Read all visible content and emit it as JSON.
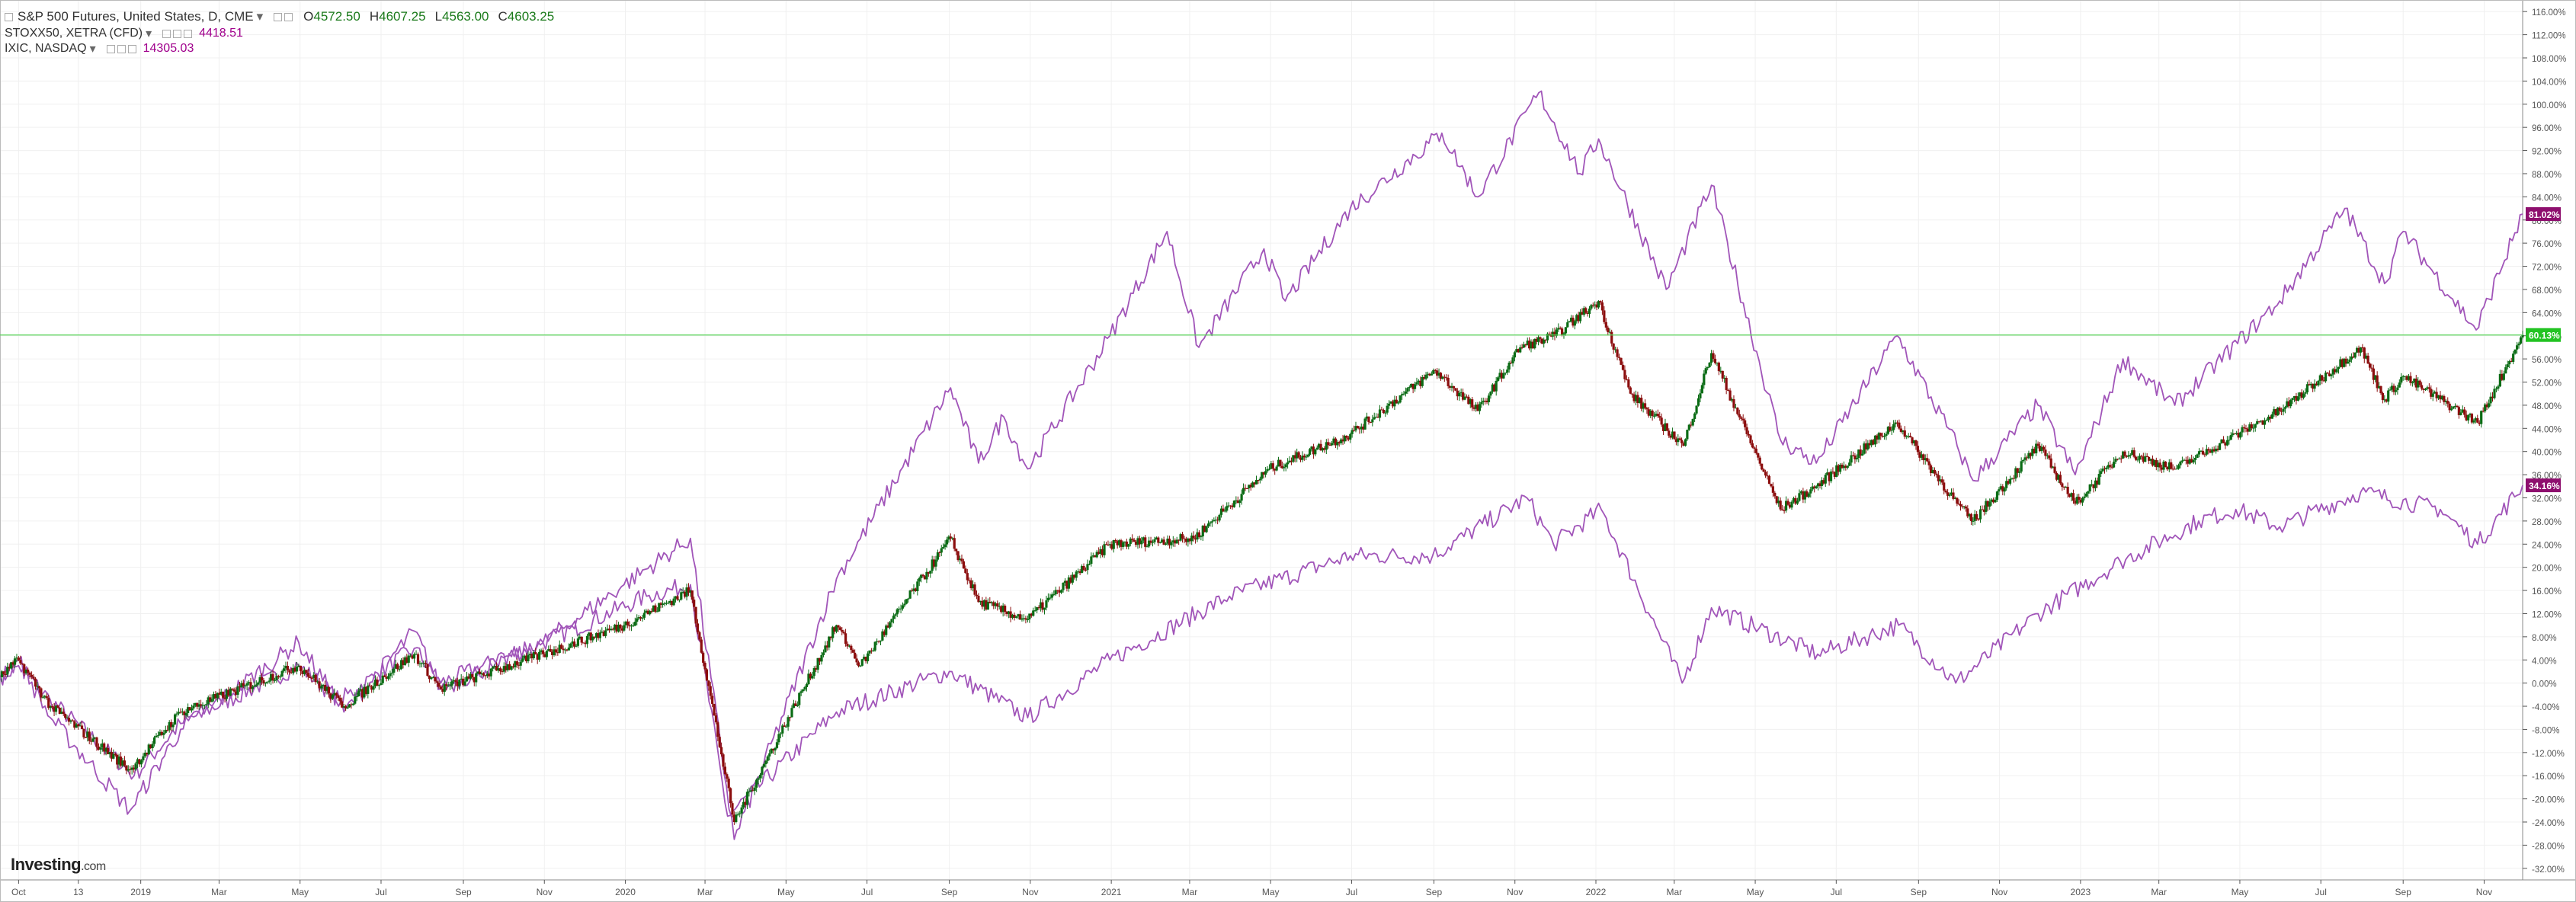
{
  "legend": {
    "main": {
      "title": "S&P 500 Futures, United States, D, CME",
      "open_label": "O",
      "open": "4572.50",
      "high_label": "H",
      "high": "4607.25",
      "low_label": "L",
      "low": "4563.00",
      "close_label": "C",
      "close": "4603.25"
    },
    "secondary": [
      {
        "label": "STOXX50, XETRA (CFD)",
        "value": "4418.51"
      },
      {
        "label": "IXIC, NASDAQ",
        "value": "14305.03"
      }
    ]
  },
  "logo": {
    "text": "Investing",
    "suffix": ".com"
  },
  "colors": {
    "candle_up": "#0a6b14",
    "candle_down": "#8b0d0d",
    "compare_line": "#a155b9",
    "last_price_line": "#5ad45a",
    "badge_green": "#22c322",
    "badge_purple": "#8e0f6e",
    "grid": "#f0f0f0"
  },
  "chart_data": {
    "type": "line",
    "ylabel": "",
    "xlabel": "",
    "y_unit": "%",
    "ylim": [
      -34,
      118
    ],
    "y_ticks": [
      116,
      112,
      108,
      104,
      100,
      96,
      92,
      88,
      84,
      80,
      76,
      72,
      68,
      64,
      60,
      56,
      52,
      48,
      44,
      40,
      36,
      32,
      28,
      24,
      20,
      16,
      12,
      8,
      4,
      0,
      -4,
      -8,
      -12,
      -16,
      -20,
      -24,
      -28,
      -32
    ],
    "y_tick_labels": [
      "116.00%",
      "112.00%",
      "108.00%",
      "104.00%",
      "100.00%",
      "96.00%",
      "92.00%",
      "88.00%",
      "84.00%",
      "80.00%",
      "76.00%",
      "72.00%",
      "68.00%",
      "64.00%",
      "60.00%",
      "56.00%",
      "52.00%",
      "48.00%",
      "44.00%",
      "40.00%",
      "36.00%",
      "32.00%",
      "28.00%",
      "24.00%",
      "20.00%",
      "16.00%",
      "12.00%",
      "8.00%",
      "4.00%",
      "0.00%",
      "-4.00%",
      "-8.00%",
      "-12.00%",
      "-16.00%",
      "-20.00%",
      "-24.00%",
      "-28.00%",
      "-32.00%"
    ],
    "x_range": [
      "2018-09-17",
      "2023-11-30"
    ],
    "x_ticks": [
      {
        "date": "2018-10-01",
        "label": "Oct"
      },
      {
        "date": "2018-11-15",
        "label": "13"
      },
      {
        "date": "2019-01-01",
        "label": "2019"
      },
      {
        "date": "2019-03-01",
        "label": "Mar"
      },
      {
        "date": "2019-05-01",
        "label": "May"
      },
      {
        "date": "2019-07-01",
        "label": "Jul"
      },
      {
        "date": "2019-09-01",
        "label": "Sep"
      },
      {
        "date": "2019-11-01",
        "label": "Nov"
      },
      {
        "date": "2020-01-01",
        "label": "2020"
      },
      {
        "date": "2020-03-01",
        "label": "Mar"
      },
      {
        "date": "2020-05-01",
        "label": "May"
      },
      {
        "date": "2020-07-01",
        "label": "Jul"
      },
      {
        "date": "2020-09-01",
        "label": "Sep"
      },
      {
        "date": "2020-11-01",
        "label": "Nov"
      },
      {
        "date": "2021-01-01",
        "label": "2021"
      },
      {
        "date": "2021-03-01",
        "label": "Mar"
      },
      {
        "date": "2021-05-01",
        "label": "May"
      },
      {
        "date": "2021-07-01",
        "label": "Jul"
      },
      {
        "date": "2021-09-01",
        "label": "Sep"
      },
      {
        "date": "2021-11-01",
        "label": "Nov"
      },
      {
        "date": "2022-01-01",
        "label": "2022"
      },
      {
        "date": "2022-03-01",
        "label": "Mar"
      },
      {
        "date": "2022-05-01",
        "label": "May"
      },
      {
        "date": "2022-07-01",
        "label": "Jul"
      },
      {
        "date": "2022-09-01",
        "label": "Sep"
      },
      {
        "date": "2022-11-01",
        "label": "Nov"
      },
      {
        "date": "2023-01-01",
        "label": "2023"
      },
      {
        "date": "2023-03-01",
        "label": "Mar"
      },
      {
        "date": "2023-05-01",
        "label": "May"
      },
      {
        "date": "2023-07-01",
        "label": "Jul"
      },
      {
        "date": "2023-09-01",
        "label": "Sep"
      },
      {
        "date": "2023-11-01",
        "label": "Nov"
      }
    ],
    "last_value_badges": [
      {
        "series": "IXIC, NASDAQ",
        "label": "81.02%",
        "value": 81.02
      },
      {
        "series": "S&P 500 Futures, United States, D, CME",
        "label": "60.13%",
        "value": 60.13
      },
      {
        "series": "STOXX50, XETRA (CFD)",
        "label": "34.16%",
        "value": 34.16
      }
    ],
    "last_price_line": 60.13,
    "grid": true,
    "series": [
      {
        "name": "S&P 500 Futures, United States, D, CME",
        "style": "candlestick",
        "x": [
          "2018-09-17",
          "2018-10-01",
          "2018-10-25",
          "2018-12-24",
          "2019-01-31",
          "2019-04-30",
          "2019-06-03",
          "2019-07-26",
          "2019-08-15",
          "2019-10-31",
          "2019-12-31",
          "2020-02-19",
          "2020-03-23",
          "2020-06-08",
          "2020-06-26",
          "2020-09-02",
          "2020-09-23",
          "2020-10-30",
          "2020-12-31",
          "2021-03-04",
          "2021-04-30",
          "2021-06-30",
          "2021-09-02",
          "2021-10-04",
          "2021-11-05",
          "2021-12-01",
          "2022-01-03",
          "2022-01-27",
          "2022-03-08",
          "2022-03-29",
          "2022-05-20",
          "2022-06-16",
          "2022-08-16",
          "2022-09-30",
          "2022-10-12",
          "2022-11-30",
          "2022-12-28",
          "2023-02-02",
          "2023-03-13",
          "2023-05-31",
          "2023-07-31",
          "2023-08-18",
          "2023-09-01",
          "2023-10-27",
          "2023-11-30"
        ],
        "y": [
          1,
          4,
          -4,
          -15,
          -5,
          3,
          -4,
          5,
          -1,
          5,
          10,
          16,
          -24,
          10,
          3,
          25,
          14,
          11,
          24,
          25,
          37,
          43,
          54,
          47,
          58,
          60,
          66,
          50,
          41,
          57,
          30,
          34,
          45,
          31,
          28,
          41,
          31,
          40,
          37,
          47,
          58,
          49,
          53,
          45,
          60.13
        ]
      },
      {
        "name": "STOXX50, XETRA (CFD)",
        "style": "line",
        "x": [
          "2018-09-17",
          "2018-10-01",
          "2018-10-25",
          "2018-12-27",
          "2019-01-31",
          "2019-04-30",
          "2019-05-31",
          "2019-07-26",
          "2019-08-15",
          "2019-10-31",
          "2020-01-17",
          "2020-02-19",
          "2020-03-18",
          "2020-06-08",
          "2020-09-01",
          "2020-10-30",
          "2020-12-31",
          "2021-03-31",
          "2021-06-30",
          "2021-08-31",
          "2021-11-10",
          "2021-11-30",
          "2022-01-05",
          "2022-03-07",
          "2022-03-29",
          "2022-06-17",
          "2022-08-17",
          "2022-09-29",
          "2022-11-30",
          "2023-01-31",
          "2023-03-31",
          "2023-04-28",
          "2023-05-31",
          "2023-07-31",
          "2023-09-29",
          "2023-10-27",
          "2023-11-30"
        ],
        "y": [
          1,
          3,
          -3,
          -16,
          -7,
          3,
          -3,
          6,
          0,
          7,
          15,
          17,
          -23,
          -5,
          2,
          -6,
          4,
          15,
          22,
          22,
          32,
          24,
          30,
          0,
          13,
          5,
          10,
          0,
          12,
          21,
          28,
          30,
          27,
          33,
          30,
          24,
          34.16
        ]
      },
      {
        "name": "IXIC, NASDAQ",
        "style": "line",
        "x": [
          "2018-09-17",
          "2018-10-01",
          "2018-10-25",
          "2018-12-24",
          "2019-01-31",
          "2019-04-30",
          "2019-06-03",
          "2019-07-26",
          "2019-08-15",
          "2019-10-31",
          "2019-12-31",
          "2020-02-19",
          "2020-03-23",
          "2020-06-08",
          "2020-09-02",
          "2020-09-23",
          "2020-10-12",
          "2020-10-30",
          "2020-12-31",
          "2021-02-12",
          "2021-03-08",
          "2021-04-26",
          "2021-05-12",
          "2021-06-30",
          "2021-09-07",
          "2021-10-04",
          "2021-11-19",
          "2021-12-20",
          "2022-01-03",
          "2022-02-23",
          "2022-03-29",
          "2022-05-20",
          "2022-06-16",
          "2022-08-16",
          "2022-09-30",
          "2022-10-12",
          "2022-11-30",
          "2022-12-28",
          "2023-02-02",
          "2023-03-13",
          "2023-05-31",
          "2023-07-19",
          "2023-08-18",
          "2023-09-01",
          "2023-10-26",
          "2023-11-30"
        ],
        "y": [
          1,
          4,
          -6,
          -22,
          -8,
          7,
          -5,
          9,
          -1,
          7,
          17,
          25,
          -27,
          18,
          51,
          38,
          46,
          37,
          60,
          78,
          58,
          75,
          66,
          82,
          95,
          84,
          102,
          88,
          94,
          68,
          86,
          42,
          38,
          60,
          41,
          35,
          48,
          36,
          56,
          48,
          66,
          82,
          69,
          78,
          61,
          81.02
        ]
      }
    ]
  }
}
